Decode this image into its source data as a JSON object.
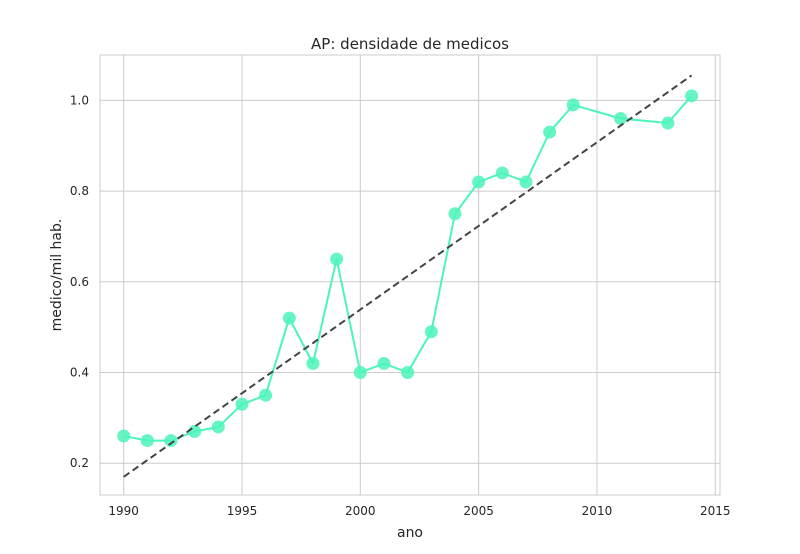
{
  "chart_data": {
    "type": "line",
    "title": "AP: densidade de medicos",
    "xlabel": "ano",
    "ylabel": "medico/mil hab.",
    "xlim": [
      1989,
      2015.2
    ],
    "ylim": [
      0.13,
      1.1
    ],
    "xticks": [
      1990,
      1995,
      2000,
      2005,
      2010,
      2015
    ],
    "yticks": [
      0.2,
      0.4,
      0.6,
      0.8,
      1.0
    ],
    "ytick_labels": [
      "0.2",
      "0.4",
      "0.6",
      "0.8",
      "1.0"
    ],
    "grid": true,
    "series": [
      {
        "type": "line",
        "color": "#4cf5b8",
        "marker": "circle",
        "x": [
          1990,
          1991,
          1992,
          1993,
          1994,
          1995,
          1996,
          1997,
          1998,
          1999,
          2000,
          2001,
          2002,
          2003,
          2004,
          2005,
          2006,
          2007,
          2008,
          2009,
          2011,
          2013,
          2014
        ],
        "y": [
          0.26,
          0.25,
          0.25,
          0.27,
          0.28,
          0.33,
          0.35,
          0.52,
          0.42,
          0.65,
          0.4,
          0.42,
          0.4,
          0.49,
          0.75,
          0.82,
          0.84,
          0.82,
          0.93,
          0.99,
          0.96,
          0.95,
          1.01
        ]
      },
      {
        "type": "trend",
        "color": "#444444",
        "dashed": true,
        "x": [
          1990,
          2014
        ],
        "y": [
          0.17,
          1.055
        ]
      }
    ]
  }
}
